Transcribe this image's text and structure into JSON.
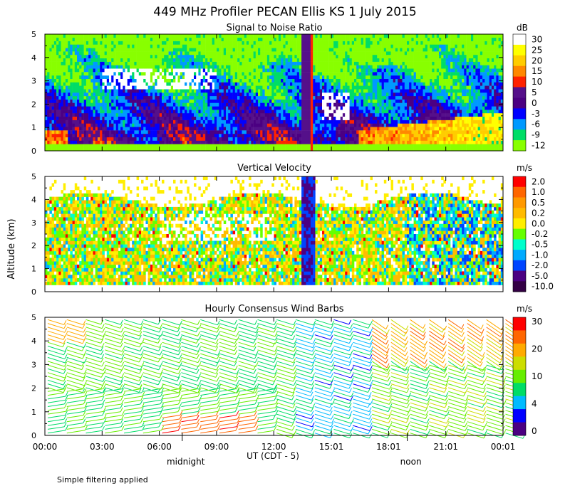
{
  "chart_data": {
    "type": "heatmap",
    "title": "449 MHz Profiler PECAN Ellis KS   1 July 2015",
    "ylabel": "Altitude (km)",
    "xlabel": "UT (CDT - 5)",
    "xlim_hours": [
      0,
      24.02
    ],
    "ylim_km": [
      0,
      5
    ],
    "x_ticks": [
      "00:00",
      "03:00",
      "06:00",
      "09:00",
      "12:00",
      "15:01",
      "18:01",
      "21:01",
      "00:01"
    ],
    "x_tick_hours": [
      0,
      3,
      6,
      9,
      12,
      15.02,
      18.02,
      21.02,
      24.02
    ],
    "local_time_marks": [
      {
        "label": "midnight",
        "hour": 7.2
      },
      {
        "label": "noon",
        "hour": 19.0
      }
    ],
    "footnote": "Simple filtering applied",
    "panels": [
      {
        "title": "Signal to Noise Ratio",
        "units": "dB",
        "y_ticks": [
          "0",
          "1",
          "2",
          "3",
          "4",
          "5"
        ],
        "colorbar_labels": [
          "30",
          "25",
          "20",
          "15",
          "10",
          "5",
          "0",
          "-3",
          "-6",
          "-9",
          "-12"
        ],
        "colors": [
          "#ffffff",
          "#ffff00",
          "#ffcc00",
          "#ff8800",
          "#ff2200",
          "#55108a",
          "#4b0082",
          "#0000ff",
          "#0099ff",
          "#00dd66",
          "#88ff00"
        ],
        "field": "snr"
      },
      {
        "title": "Vertical Velocity",
        "units": "m/s",
        "y_ticks": [
          "0",
          "1",
          "2",
          "3",
          "4",
          "5"
        ],
        "colorbar_labels": [
          "2.0",
          "1.0",
          "0.5",
          "0.2",
          "0.0",
          "-0.2",
          "-0.5",
          "-1.0",
          "-2.0",
          "-5.0",
          "-10.0"
        ],
        "colors": [
          "#ff0000",
          "#ff6600",
          "#ff9900",
          "#ffbb00",
          "#ffee00",
          "#66ff00",
          "#00ffcc",
          "#00aaff",
          "#0044ff",
          "#4b0082",
          "#330044"
        ],
        "field": "velocity"
      },
      {
        "title": "Hourly Consensus Wind Barbs",
        "units": "m/s",
        "y_ticks": [
          "0",
          "1",
          "2",
          "3",
          "4",
          "5"
        ],
        "colorbar_labels": [
          "30",
          "20",
          "10",
          "4",
          "0"
        ],
        "colors": [
          "#ff0000",
          "#ff6600",
          "#ffaa00",
          "#ccdd00",
          "#66ee00",
          "#00dd66",
          "#00bbff",
          "#0000ff",
          "#4b0082"
        ],
        "field": "wind_speed"
      }
    ],
    "wind_speed_by_altitude_bands": [
      {
        "hours": "0-12",
        "alt_km": "0-1.5",
        "speed_ms": 10
      },
      {
        "hours": "6-10",
        "alt_km": "0-0.8",
        "speed_ms": 28
      },
      {
        "hours": "0-12",
        "alt_km": "1.5-4.5",
        "speed_ms": 10
      },
      {
        "hours": "13-16",
        "alt_km": "0-5",
        "speed_ms": 5
      },
      {
        "hours": "16-24",
        "alt_km": "0-3",
        "speed_ms": 12
      },
      {
        "hours": "16-24",
        "alt_km": "3-5",
        "speed_ms": 22
      }
    ]
  }
}
